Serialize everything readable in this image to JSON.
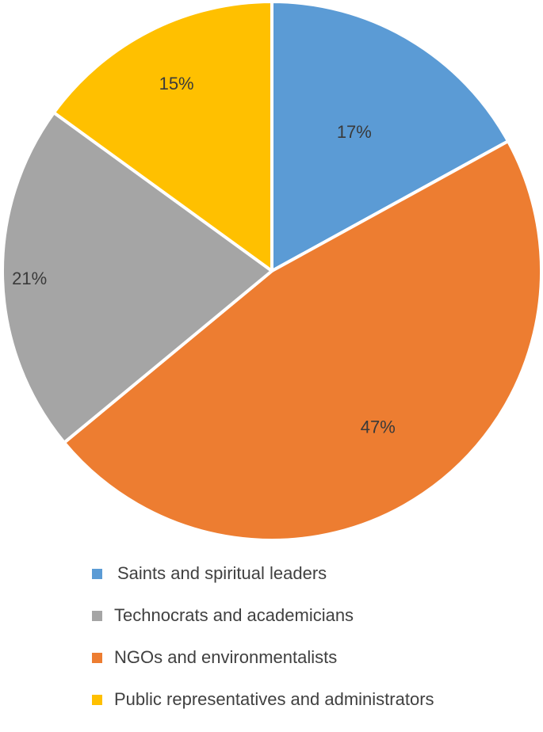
{
  "chart_data": {
    "type": "pie",
    "title": "",
    "slices": [
      {
        "label": "Saints and spiritual leaders",
        "value": 17,
        "display": "17%",
        "color": "#5B9BD5"
      },
      {
        "label": "NGOs and environmentalists",
        "value": 47,
        "display": "47%",
        "color": "#ED7D31"
      },
      {
        "label": "Technocrats and academicians",
        "value": 21,
        "display": "21%",
        "color": "#A5A5A5"
      },
      {
        "label": "Public representatives and administrators",
        "value": 15,
        "display": "15%",
        "color": "#FFC000"
      }
    ],
    "legend": [
      {
        "label": "Saints and spiritual leaders",
        "color": "#5B9BD5"
      },
      {
        "label": "Technocrats and academicians",
        "color": "#A5A5A5"
      },
      {
        "label": "NGOs and environmentalists",
        "color": "#ED7D31"
      },
      {
        "label": "Public representatives and administrators",
        "color": "#FFC000"
      }
    ],
    "legend_position": "bottom"
  }
}
